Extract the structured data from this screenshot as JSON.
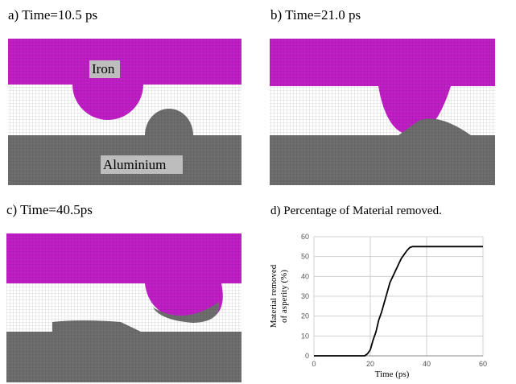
{
  "panels": [
    {
      "caption": "a) Time=10.5 ps",
      "labels": [
        "Iron",
        "Aluminium"
      ]
    },
    {
      "caption": "b) Time=21.0 ps"
    },
    {
      "caption": "c) Time=40.5ps"
    },
    {
      "caption": "d) Percentage of Material removed."
    }
  ],
  "chart_data": {
    "type": "line",
    "y_label_lines": [
      "Material removed",
      "of asperity (%)"
    ],
    "x_label": "Time (ps)",
    "x": [
      0,
      10,
      18,
      19,
      20,
      21,
      22,
      23,
      24,
      25,
      26,
      27,
      28,
      29,
      30,
      31,
      32,
      33,
      34,
      35,
      36,
      40,
      50,
      60
    ],
    "series": [
      {
        "color": "#000000",
        "values": [
          0,
          0,
          0,
          1,
          3,
          8,
          12,
          18,
          22,
          27,
          32,
          37,
          40,
          43,
          46,
          49,
          51,
          53,
          54.5,
          55,
          55,
          55,
          55,
          55
        ]
      }
    ],
    "xlim": [
      0,
      60
    ],
    "ylim": [
      0,
      60
    ],
    "xticks": [
      0,
      20,
      40,
      60
    ],
    "yticks": [
      0,
      10,
      20,
      30,
      40,
      50,
      60
    ],
    "grid": true
  }
}
